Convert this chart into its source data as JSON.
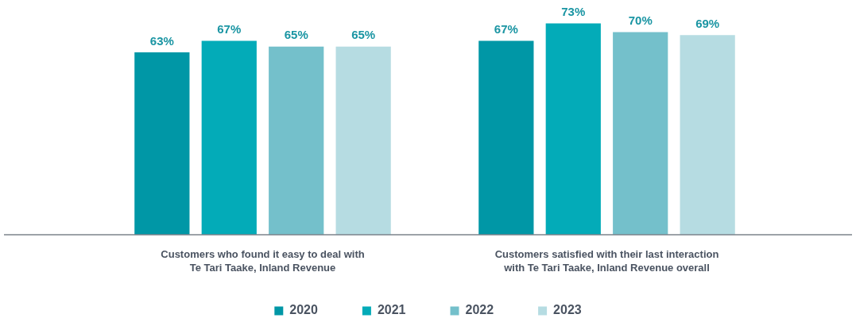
{
  "chart_data": {
    "type": "bar",
    "categories": [
      "Customers who found it easy to deal with\nTe Tari Taake, Inland Revenue",
      "Customers satisfied with their last interaction\nwith Te Tari Taake, Inland Revenue overall"
    ],
    "series": [
      {
        "name": "2020",
        "color": "#0097a6",
        "values": [
          63,
          67
        ],
        "value_labels": [
          "63%",
          "67%"
        ]
      },
      {
        "name": "2021",
        "color": "#03abb8",
        "values": [
          67,
          73
        ],
        "value_labels": [
          "67%",
          "73%"
        ]
      },
      {
        "name": "2022",
        "color": "#74c0cb",
        "values": [
          65,
          70
        ],
        "value_labels": [
          "65%",
          "70%"
        ]
      },
      {
        "name": "2023",
        "color": "#b6dce2",
        "values": [
          65,
          69
        ],
        "value_labels": [
          "65%",
          "69%"
        ]
      }
    ],
    "legend": "bottom",
    "tick_labels": "x"
  }
}
